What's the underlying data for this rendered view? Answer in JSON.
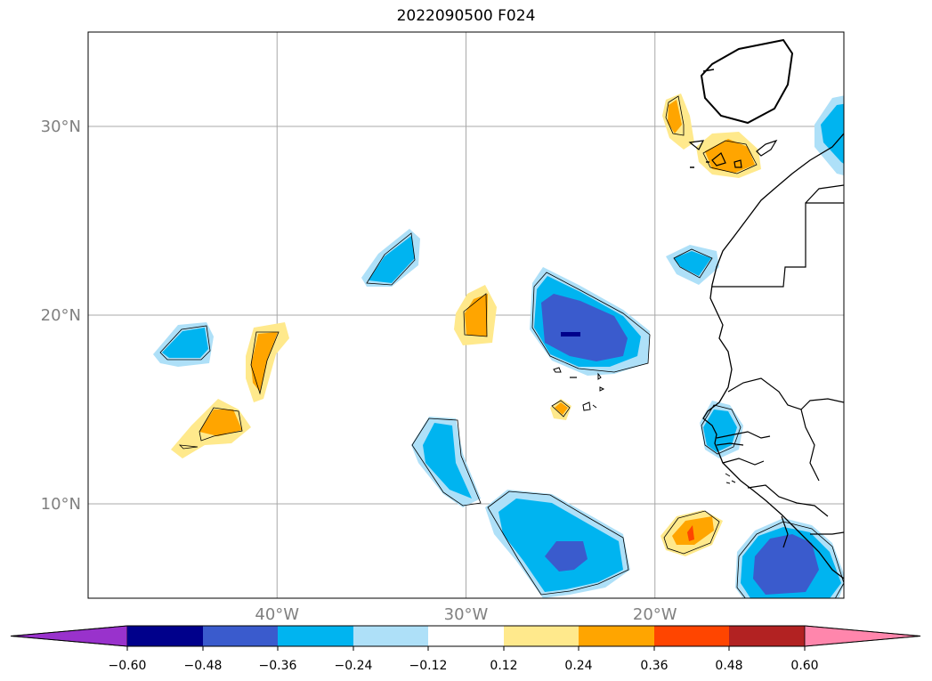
{
  "title": "2022090500 F024",
  "map": {
    "lon_range": [
      -50,
      -10
    ],
    "lat_range": [
      5,
      35
    ],
    "lon_ticks": [
      {
        "value": -40,
        "label": "40°W"
      },
      {
        "value": -30,
        "label": "30°W"
      },
      {
        "value": -20,
        "label": "20°W"
      }
    ],
    "lat_ticks": [
      {
        "value": 30,
        "label": "30°N"
      },
      {
        "value": 20,
        "label": "20°N"
      },
      {
        "value": 10,
        "label": "10°N"
      }
    ],
    "grid": true,
    "tick_label_color": "#808080"
  },
  "colorbar": {
    "orientation": "horizontal",
    "position": "bottom",
    "extend": "both",
    "bounds": [
      -0.6,
      -0.48,
      -0.36,
      -0.24,
      -0.12,
      0.12,
      0.24,
      0.36,
      0.48,
      0.6
    ],
    "tick_labels": [
      "−0.60",
      "−0.48",
      "−0.36",
      "−0.24",
      "−0.12",
      "0.12",
      "0.24",
      "0.36",
      "0.48",
      "0.60"
    ],
    "colors": [
      "#9932cc",
      "#00008b",
      "#3a5bcd",
      "#00b4f0",
      "#aee0f8",
      "#ffffff",
      "#ffe98c",
      "#ffa500",
      "#ff4500",
      "#b22222",
      "#ff86ac"
    ]
  }
}
